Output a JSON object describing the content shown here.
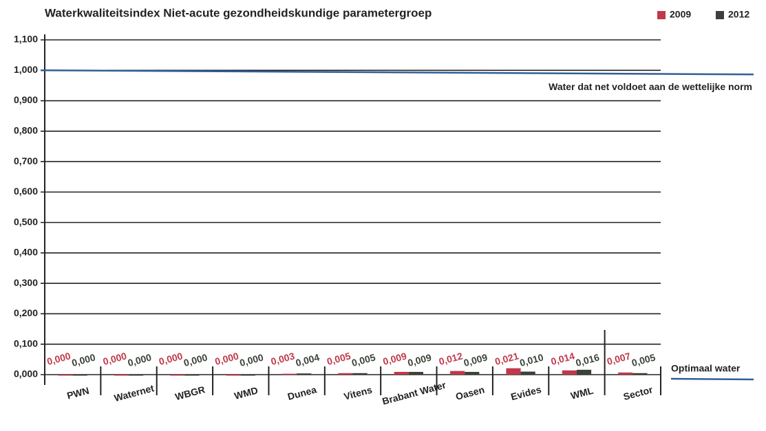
{
  "chart_data": {
    "type": "bar",
    "title": "Waterkwaliteitsindex Niet-acute gezondheidskundige parametergroep",
    "categories": [
      "PWN",
      "Waternet",
      "WBGR",
      "WMD",
      "Dunea",
      "Vitens",
      "Brabant Water",
      "Oasen",
      "Evides",
      "WML",
      "Sector"
    ],
    "series": [
      {
        "name": "2009",
        "color": "#c0394b",
        "values": [
          0,
          0,
          0,
          0,
          0.003,
          0.005,
          0.009,
          0.012,
          0.021,
          0.014,
          0.007
        ],
        "value_labels": [
          "0,000",
          "0,000",
          "0,000",
          "0,000",
          "0,003",
          "0,005",
          "0,009",
          "0,012",
          "0,021",
          "0,014",
          "0,007"
        ]
      },
      {
        "name": "2012",
        "color": "#3b4339",
        "values": [
          0,
          0,
          0,
          0,
          0.004,
          0.005,
          0.009,
          0.009,
          0.01,
          0.016,
          0.005
        ],
        "value_labels": [
          "0,000",
          "0,000",
          "0,000",
          "0,000",
          "0,004",
          "0,005",
          "0,009",
          "0,009",
          "0,010",
          "0,016",
          "0,005"
        ]
      }
    ],
    "ylim": [
      0,
      1.1
    ],
    "yticks": [
      {
        "value": 0,
        "label": "0,000"
      },
      {
        "value": 0.1,
        "label": "0,100"
      },
      {
        "value": 0.2,
        "label": "0,200"
      },
      {
        "value": 0.3,
        "label": "0,300"
      },
      {
        "value": 0.4,
        "label": "0,400"
      },
      {
        "value": 0.5,
        "label": "0,500"
      },
      {
        "value": 0.6,
        "label": "0,600"
      },
      {
        "value": 0.7,
        "label": "0,700"
      },
      {
        "value": 0.8,
        "label": "0,800"
      },
      {
        "value": 0.9,
        "label": "0,900"
      },
      {
        "value": 1.0,
        "label": "1,000"
      },
      {
        "value": 1.1,
        "label": "1,100"
      }
    ],
    "grid": true,
    "legend": "top-right",
    "reference_lines": [
      {
        "label": "Water dat net voldoet aan de wettelijke norm",
        "value": 1.0,
        "color": "#2f5f95"
      },
      {
        "label": "Optimaal water",
        "value": 0,
        "color": "#2f5f95"
      }
    ]
  }
}
